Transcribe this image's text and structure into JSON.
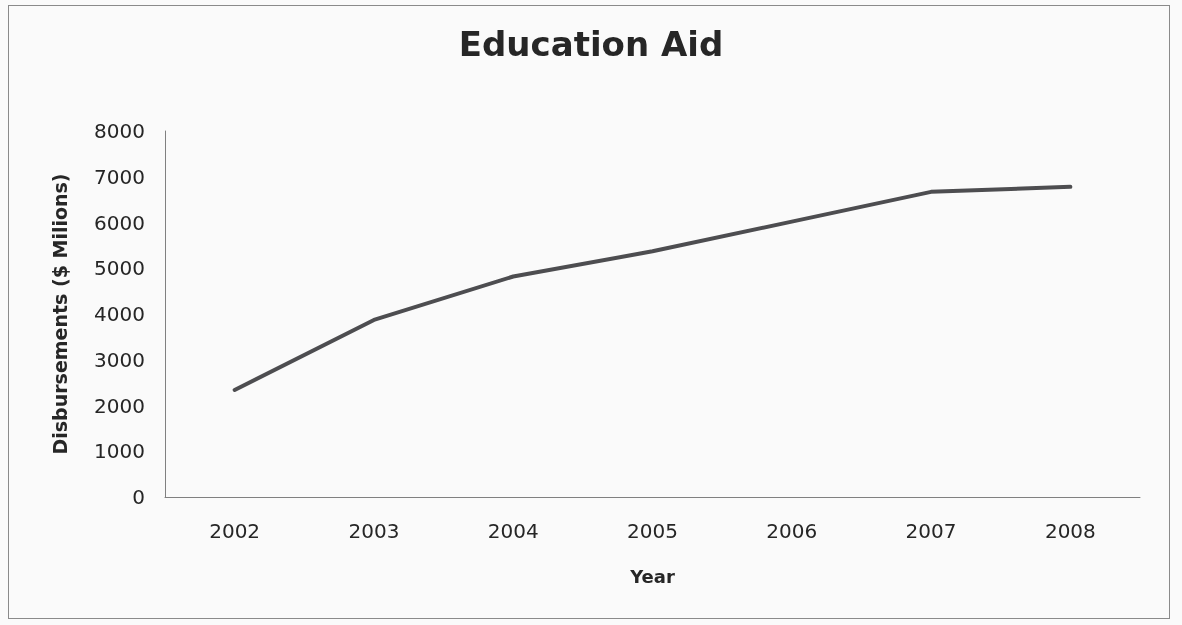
{
  "chart_data": {
    "type": "line",
    "title": "Education Aid",
    "xlabel": "Year",
    "ylabel": "Disbursements ($ Milions)",
    "categories": [
      "2002",
      "2003",
      "2004",
      "2005",
      "2006",
      "2007",
      "2008"
    ],
    "series": [
      {
        "color": "#4d4d50",
        "values": [
          2340,
          3870,
          4820,
          5370,
          6020,
          6670,
          6780
        ]
      }
    ],
    "ylim": [
      0,
      8000
    ],
    "yticks": [
      0,
      1000,
      2000,
      3000,
      4000,
      5000,
      6000,
      7000,
      8000
    ],
    "grid": false,
    "marker": "none",
    "line_style": "solid"
  }
}
